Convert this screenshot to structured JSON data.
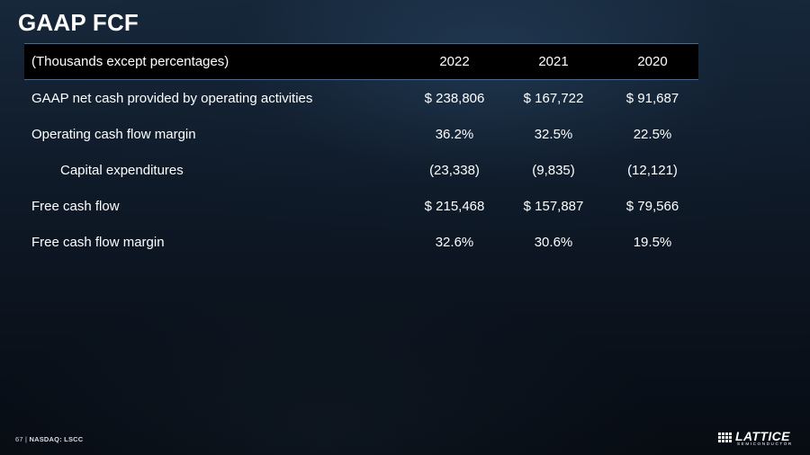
{
  "slide": {
    "title": "GAAP FCF",
    "footer_page": "67",
    "footer_sep": "|",
    "footer_ticker": "NASDAQ: LSCC"
  },
  "logo": {
    "icon": "lattice-grid-logo-icon",
    "wordmark": "LATTICE",
    "subtitle": "SEMICONDUCTOR"
  },
  "table": {
    "header": [
      "(Thousands except percentages)",
      "2022",
      "2021",
      "2020"
    ],
    "rows": [
      {
        "label": "GAAP net cash provided by operating activities",
        "values": [
          "$ 238,806",
          "$ 167,722",
          "$ 91,687"
        ]
      },
      {
        "label": "Operating cash flow margin",
        "values": [
          "36.2%",
          "32.5%",
          "22.5%"
        ]
      },
      {
        "label": "Capital expenditures",
        "values": [
          "(23,338)",
          "(9,835)",
          "(12,121)"
        ]
      },
      {
        "label": "Free cash flow",
        "values": [
          "$ 215,468",
          "$ 157,887",
          "$ 79,566"
        ]
      },
      {
        "label": "Free cash flow margin",
        "values": [
          "32.6%",
          "30.6%",
          "19.5%"
        ]
      }
    ]
  }
}
